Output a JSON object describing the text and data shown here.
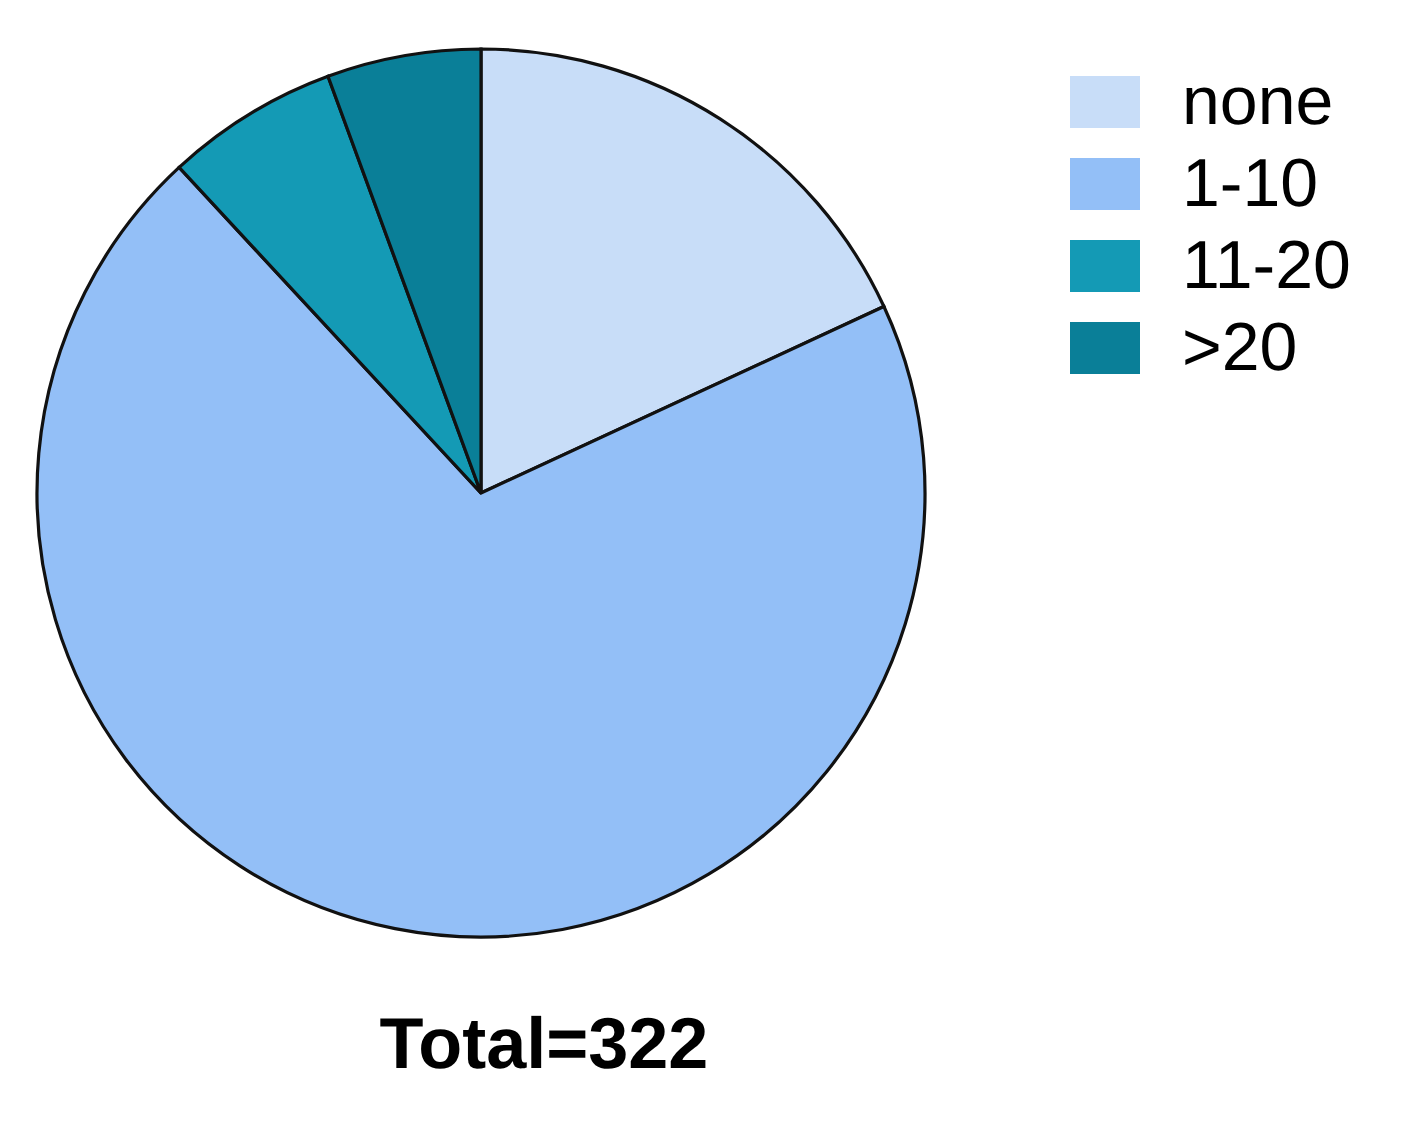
{
  "chart_data": {
    "type": "pie",
    "title": "Total=322",
    "categories": [
      "none",
      "1-10",
      "11-20",
      ">20"
    ],
    "values": [
      18.1,
      70.0,
      6.3,
      5.6
    ],
    "colors": [
      "#c8ddf8",
      "#93bff7",
      "#149ab5",
      "#0a7f98"
    ],
    "legend": "top right"
  }
}
